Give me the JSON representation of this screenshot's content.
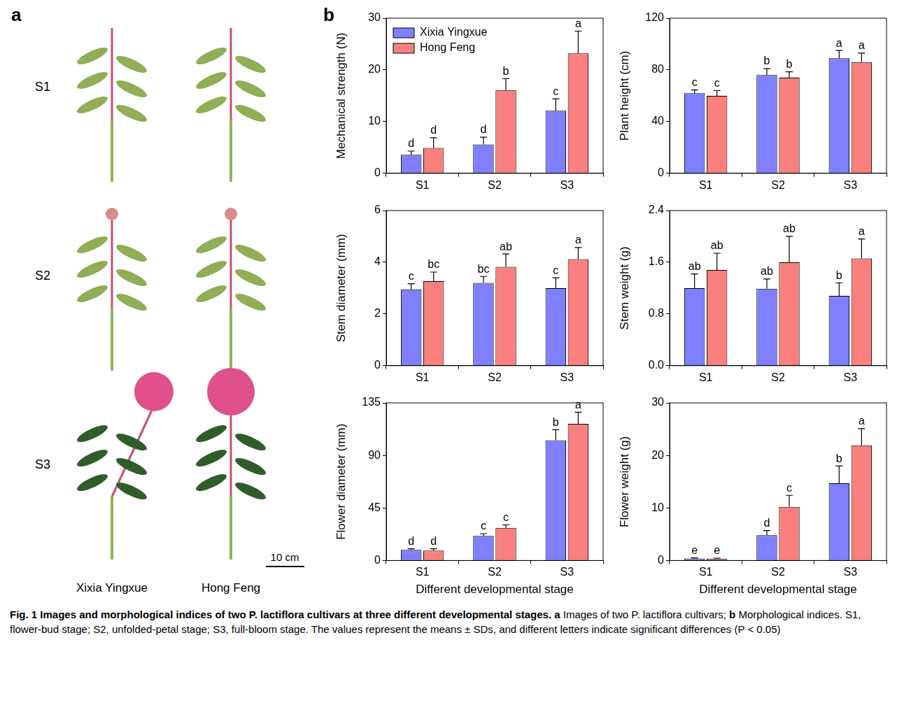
{
  "figure": {
    "panel_a": {
      "letter": "a",
      "stages": [
        "S1",
        "S2",
        "S3"
      ],
      "cultivars": [
        "Xixia Yingxue",
        "Hong Feng"
      ],
      "scale_bar": "10 cm"
    },
    "panel_b": {
      "letter": "b"
    },
    "caption": {
      "title": "Fig. 1 Images and morphological indices of two P. lactiflora cultivars at three different developmental stages.",
      "items": [
        {
          "letter": "a",
          "text": "Images of two P. lactiflora cultivars;"
        },
        {
          "letter": "b",
          "text": "Morphological indices. S1, flower-bud stage; S2, unfolded-petal stage; S3, full-bloom stage. The values represent the means ± SDs, and different letters indicate significant differences (P < 0.05)"
        }
      ]
    }
  },
  "chart_data": [
    {
      "type": "bar",
      "y_label": "Mechanical strength (N)",
      "categories": [
        "S1",
        "S2",
        "S3"
      ],
      "series": [
        {
          "name": "Xixia Yingxue",
          "color": "#8080ff",
          "values": [
            3.6,
            5.6,
            12.1
          ],
          "errors": [
            0.7,
            1.4,
            2.3
          ],
          "letters": [
            "d",
            "d",
            "c"
          ]
        },
        {
          "name": "Hong Feng",
          "color": "#fa8080",
          "values": [
            4.9,
            16.1,
            23.2
          ],
          "errors": [
            2.0,
            2.2,
            4.3
          ],
          "letters": [
            "d",
            "b",
            "a"
          ]
        }
      ],
      "ylim": [
        0,
        30
      ],
      "yticks": [
        0,
        10,
        20,
        30
      ],
      "grid": false,
      "legend": "upper left"
    },
    {
      "type": "bar",
      "y_label": "Plant height (cm)",
      "categories": [
        "S1",
        "S2",
        "S3"
      ],
      "series": [
        {
          "color": "#8080ff",
          "values": [
            62,
            76,
            89
          ],
          "errors": [
            2.5,
            5,
            6
          ],
          "letters": [
            "c",
            "b",
            "a"
          ]
        },
        {
          "color": "#fa8080",
          "values": [
            60,
            74,
            86
          ],
          "errors": [
            4,
            4.5,
            7
          ],
          "letters": [
            "c",
            "b",
            "a"
          ]
        }
      ],
      "ylim": [
        0,
        120
      ],
      "yticks": [
        0,
        40,
        80,
        120
      ],
      "grid": false
    },
    {
      "type": "bar",
      "y_label": "Stem diameter (mm)",
      "categories": [
        "S1",
        "S2",
        "S3"
      ],
      "series": [
        {
          "color": "#8080ff",
          "values": [
            2.95,
            3.2,
            3.0
          ],
          "errors": [
            0.22,
            0.25,
            0.4
          ],
          "letters": [
            "c",
            "bc",
            "c"
          ]
        },
        {
          "color": "#fa8080",
          "values": [
            3.27,
            3.82,
            4.12
          ],
          "errors": [
            0.35,
            0.5,
            0.45
          ],
          "letters": [
            "bc",
            "ab",
            "a"
          ]
        }
      ],
      "ylim": [
        0,
        6
      ],
      "yticks": [
        0,
        2,
        4,
        6
      ],
      "grid": false
    },
    {
      "type": "bar",
      "y_label": "Stem weight (g)",
      "categories": [
        "S1",
        "S2",
        "S3"
      ],
      "series": [
        {
          "color": "#8080ff",
          "values": [
            1.2,
            1.19,
            1.08
          ],
          "errors": [
            0.22,
            0.15,
            0.2
          ],
          "letters": [
            "ab",
            "ab",
            "b"
          ]
        },
        {
          "color": "#fa8080",
          "values": [
            1.48,
            1.6,
            1.66
          ],
          "errors": [
            0.26,
            0.4,
            0.3
          ],
          "letters": [
            "ab",
            "ab",
            "a"
          ]
        }
      ],
      "ylim": [
        0,
        2.4
      ],
      "yticks": [
        {
          "value": 0,
          "label": "0.0"
        },
        0.8,
        1.6,
        2.4
      ],
      "grid": false
    },
    {
      "type": "bar",
      "y_label": "Flower diameter (mm)",
      "x_label": "Different developmental stage",
      "categories": [
        "S1",
        "S2",
        "S3"
      ],
      "series": [
        {
          "color": "#8080ff",
          "values": [
            9,
            21,
            103
          ],
          "errors": [
            1,
            2,
            9
          ],
          "letters": [
            "d",
            "c",
            "b"
          ]
        },
        {
          "color": "#fa8080",
          "values": [
            8.5,
            28,
            117
          ],
          "errors": [
            1.5,
            2.5,
            10
          ],
          "letters": [
            "d",
            "c",
            "a"
          ]
        }
      ],
      "ylim": [
        0,
        135
      ],
      "yticks": [
        0,
        45,
        90,
        135
      ],
      "grid": false
    },
    {
      "type": "bar",
      "y_label": "Flower weight (g)",
      "x_label": "Different developmental stage",
      "categories": [
        "S1",
        "S2",
        "S3"
      ],
      "series": [
        {
          "color": "#8080ff",
          "values": [
            0.4,
            4.8,
            14.7
          ],
          "errors": [
            0.1,
            0.9,
            3.3
          ],
          "letters": [
            "e",
            "d",
            "b"
          ]
        },
        {
          "color": "#fa8080",
          "values": [
            0.35,
            10.2,
            21.9
          ],
          "errors": [
            0.1,
            2.2,
            3.2
          ],
          "letters": [
            "e",
            "c",
            "a"
          ]
        }
      ],
      "ylim": [
        0,
        30
      ],
      "yticks": [
        0,
        10,
        20,
        30
      ],
      "grid": false
    }
  ]
}
